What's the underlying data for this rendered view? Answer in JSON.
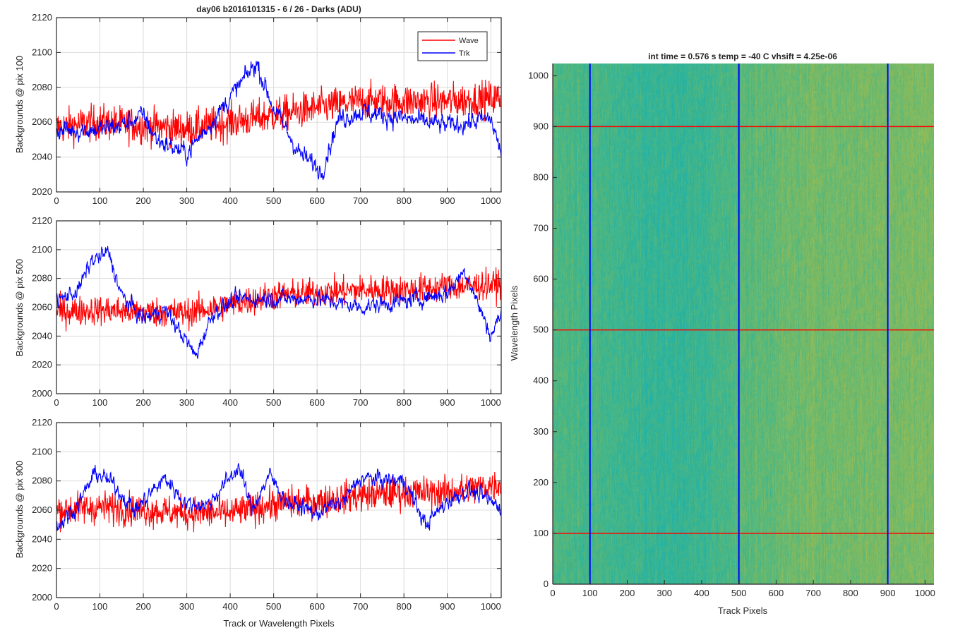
{
  "figure_title": "day06 b2016101315 - 6 / 26 - Darks (ADU)",
  "chart_data": [
    {
      "type": "line",
      "title": "day06 b2016101315 - 6 / 26 - Darks (ADU)",
      "xlabel": "",
      "ylabel": "Backgrounds @ pix 100",
      "xlim": [
        0,
        1024
      ],
      "ylim": [
        2020,
        2120
      ],
      "xticks": [
        "0",
        "100",
        "200",
        "300",
        "400",
        "500",
        "600",
        "700",
        "800",
        "900",
        "1000"
      ],
      "yticks": [
        "2020",
        "2040",
        "2060",
        "2080",
        "2100",
        "2120"
      ],
      "grid": true,
      "legend": "top-right",
      "series": [
        {
          "name": "Wave",
          "color": "#ff0000",
          "mean_trend": [
            [
              0,
              2057
            ],
            [
              100,
              2060
            ],
            [
              200,
              2058
            ],
            [
              300,
              2056
            ],
            [
              400,
              2060
            ],
            [
              500,
              2064
            ],
            [
              600,
              2068
            ],
            [
              700,
              2072
            ],
            [
              800,
              2072
            ],
            [
              900,
              2072
            ],
            [
              1024,
              2074
            ]
          ],
          "noise_amplitude": 12
        },
        {
          "name": "Trk",
          "color": "#0000ff",
          "mean_trend": [
            [
              0,
              2055
            ],
            [
              100,
              2056
            ],
            [
              150,
              2058
            ],
            [
              200,
              2064
            ],
            [
              230,
              2050
            ],
            [
              300,
              2042
            ],
            [
              400,
              2074
            ],
            [
              460,
              2094
            ],
            [
              500,
              2068
            ],
            [
              560,
              2042
            ],
            [
              610,
              2032
            ],
            [
              650,
              2062
            ],
            [
              700,
              2066
            ],
            [
              800,
              2062
            ],
            [
              900,
              2058
            ],
            [
              1000,
              2062
            ],
            [
              1024,
              2042
            ]
          ],
          "noise_amplitude": 6
        }
      ]
    },
    {
      "type": "line",
      "xlabel": "",
      "ylabel": "Backgrounds @ pix 500",
      "xlim": [
        0,
        1024
      ],
      "ylim": [
        2000,
        2120
      ],
      "xticks": [
        "0",
        "100",
        "200",
        "300",
        "400",
        "500",
        "600",
        "700",
        "800",
        "900",
        "1000"
      ],
      "yticks": [
        "2000",
        "2020",
        "2040",
        "2060",
        "2080",
        "2100",
        "2120"
      ],
      "grid": true,
      "series": [
        {
          "name": "Wave",
          "color": "#ff0000",
          "mean_trend": [
            [
              0,
              2057
            ],
            [
              100,
              2058
            ],
            [
              200,
              2057
            ],
            [
              300,
              2056
            ],
            [
              400,
              2062
            ],
            [
              500,
              2068
            ],
            [
              600,
              2070
            ],
            [
              700,
              2072
            ],
            [
              800,
              2072
            ],
            [
              900,
              2074
            ],
            [
              1024,
              2076
            ]
          ],
          "noise_amplitude": 12
        },
        {
          "name": "Trk",
          "color": "#0000ff",
          "mean_trend": [
            [
              0,
              2064
            ],
            [
              50,
              2072
            ],
            [
              80,
              2092
            ],
            [
              120,
              2098
            ],
            [
              150,
              2068
            ],
            [
              200,
              2052
            ],
            [
              250,
              2058
            ],
            [
              300,
              2036
            ],
            [
              320,
              2026
            ],
            [
              360,
              2056
            ],
            [
              420,
              2066
            ],
            [
              500,
              2066
            ],
            [
              600,
              2066
            ],
            [
              700,
              2060
            ],
            [
              800,
              2064
            ],
            [
              900,
              2070
            ],
            [
              940,
              2086
            ],
            [
              1000,
              2040
            ],
            [
              1024,
              2056
            ]
          ],
          "noise_amplitude": 6
        }
      ]
    },
    {
      "type": "line",
      "xlabel": "Track or Wavelength Pixels",
      "ylabel": "Backgrounds @ pix 900",
      "xlim": [
        0,
        1024
      ],
      "ylim": [
        2000,
        2120
      ],
      "xticks": [
        "0",
        "100",
        "200",
        "300",
        "400",
        "500",
        "600",
        "700",
        "800",
        "900",
        "1000"
      ],
      "yticks": [
        "2000",
        "2020",
        "2040",
        "2060",
        "2080",
        "2100",
        "2120"
      ],
      "grid": true,
      "series": [
        {
          "name": "Wave",
          "color": "#ff0000",
          "mean_trend": [
            [
              0,
              2060
            ],
            [
              100,
              2062
            ],
            [
              200,
              2060
            ],
            [
              300,
              2058
            ],
            [
              400,
              2058
            ],
            [
              500,
              2064
            ],
            [
              600,
              2066
            ],
            [
              700,
              2070
            ],
            [
              800,
              2072
            ],
            [
              900,
              2072
            ],
            [
              1024,
              2078
            ]
          ],
          "noise_amplitude": 13
        },
        {
          "name": "Trk",
          "color": "#0000ff",
          "mean_trend": [
            [
              0,
              2048
            ],
            [
              50,
              2064
            ],
            [
              90,
              2086
            ],
            [
              130,
              2078
            ],
            [
              180,
              2060
            ],
            [
              250,
              2082
            ],
            [
              300,
              2064
            ],
            [
              350,
              2064
            ],
            [
              420,
              2090
            ],
            [
              450,
              2060
            ],
            [
              490,
              2084
            ],
            [
              530,
              2066
            ],
            [
              600,
              2058
            ],
            [
              660,
              2066
            ],
            [
              700,
              2082
            ],
            [
              800,
              2080
            ],
            [
              850,
              2050
            ],
            [
              900,
              2066
            ],
            [
              950,
              2074
            ],
            [
              1024,
              2062
            ]
          ],
          "noise_amplitude": 6
        }
      ]
    },
    {
      "type": "heatmap",
      "title": "int time = 0.576 s   temp = -40 C   vhsift = 4.25e-06",
      "xlabel": "Track Pixels",
      "ylabel": "Wavelength Pixels",
      "xlim": [
        0,
        1024
      ],
      "ylim": [
        0,
        1024
      ],
      "xticks": [
        "0",
        "100",
        "200",
        "300",
        "400",
        "500",
        "600",
        "700",
        "800",
        "900",
        "1000"
      ],
      "yticks": [
        "0",
        "100",
        "200",
        "300",
        "400",
        "500",
        "600",
        "700",
        "800",
        "900",
        "1000"
      ],
      "vertical_lines": {
        "x": [
          100,
          500,
          900
        ],
        "color": "#0000ff"
      },
      "horizontal_lines": {
        "y": [
          100,
          500,
          900
        ],
        "color": "#ff0000"
      },
      "column_profile": [
        [
          0,
          0.45
        ],
        [
          100,
          0.42
        ],
        [
          200,
          0.38
        ],
        [
          300,
          0.33
        ],
        [
          400,
          0.36
        ],
        [
          500,
          0.48
        ],
        [
          600,
          0.55
        ],
        [
          700,
          0.6
        ],
        [
          800,
          0.6
        ],
        [
          900,
          0.62
        ],
        [
          1024,
          0.64
        ]
      ],
      "colormap": [
        "#1ea7c4",
        "#23b2a4",
        "#5ab878",
        "#9cbc52",
        "#d9ba3a"
      ]
    }
  ]
}
